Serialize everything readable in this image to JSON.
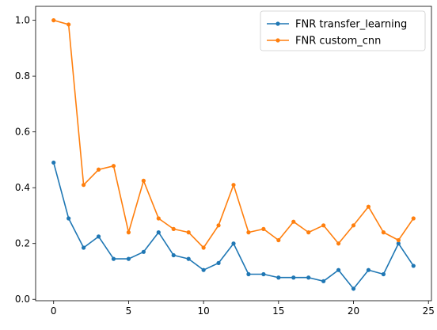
{
  "chart_data": {
    "type": "line",
    "title": "",
    "xlabel": "",
    "ylabel": "",
    "xlim": [
      -1.2,
      25.2
    ],
    "ylim": [
      -0.005,
      1.05
    ],
    "x_ticks": [
      0,
      5,
      10,
      15,
      20,
      25
    ],
    "x_tick_labels": [
      "0",
      "5",
      "10",
      "15",
      "20",
      "25"
    ],
    "y_ticks": [
      0.0,
      0.2,
      0.4,
      0.6,
      0.8,
      1.0
    ],
    "y_tick_labels": [
      "0.0",
      "0.2",
      "0.4",
      "0.6",
      "0.8",
      "1.0"
    ],
    "grid": false,
    "legend_position": "top-right",
    "x": [
      0,
      1,
      2,
      3,
      4,
      5,
      6,
      7,
      8,
      9,
      10,
      11,
      12,
      13,
      14,
      15,
      16,
      17,
      18,
      19,
      20,
      21,
      22,
      23,
      24
    ],
    "series": [
      {
        "name": "FNR transfer_learning",
        "color": "#1f77b4",
        "marker": "circle",
        "values": [
          0.49,
          0.29,
          0.185,
          0.225,
          0.145,
          0.145,
          0.17,
          0.24,
          0.158,
          0.145,
          0.105,
          0.13,
          0.2,
          0.09,
          0.09,
          0.078,
          0.078,
          0.078,
          0.065,
          0.105,
          0.038,
          0.105,
          0.09,
          0.2,
          0.12
        ]
      },
      {
        "name": "FNR custom_cnn",
        "color": "#ff7f0e",
        "marker": "circle",
        "values": [
          1.0,
          0.985,
          0.41,
          0.465,
          0.478,
          0.24,
          0.425,
          0.29,
          0.252,
          0.24,
          0.185,
          0.265,
          0.41,
          0.24,
          0.252,
          0.212,
          0.278,
          0.24,
          0.265,
          0.2,
          0.265,
          0.332,
          0.24,
          0.212,
          0.29
        ]
      }
    ]
  }
}
